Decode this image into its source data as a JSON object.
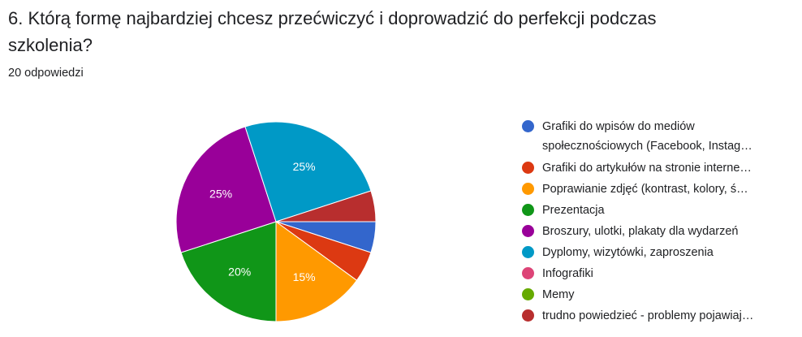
{
  "question": {
    "title_line1": "6. Którą formę najbardziej chcesz przećwiczyć i doprowadzić do perfekcji podczas",
    "title_line2": "szkolenia?",
    "response_count": "20 odpowiedzi"
  },
  "chart_data": {
    "type": "pie",
    "title": "",
    "slices": [
      {
        "label": "Grafiki do wpisów do mediów społecznościowych (Facebook, Instag…",
        "label_line1": "Grafiki do wpisów do mediów",
        "label_line2": "społecznościowych (Facebook, Instag…",
        "value": 1,
        "percent_label": "",
        "color": "#3366cc"
      },
      {
        "label": "Grafiki do artykułów na stronie interne…",
        "value": 1,
        "percent_label": "",
        "color": "#dc3912"
      },
      {
        "label": "Poprawianie zdjęć (kontrast, kolory, ś…",
        "value": 3,
        "percent_label": "15%",
        "color": "#ff9900"
      },
      {
        "label": "Prezentacja",
        "value": 4,
        "percent_label": "20%",
        "color": "#109618"
      },
      {
        "label": "Broszury, ulotki, plakaty dla wydarzeń",
        "value": 5,
        "percent_label": "25%",
        "color": "#990099"
      },
      {
        "label": "Dyplomy, wizytówki, zaproszenia",
        "value": 5,
        "percent_label": "25%",
        "color": "#0099c6"
      },
      {
        "label": "Infografiki",
        "value": 0,
        "percent_label": "",
        "color": "#dd4477"
      },
      {
        "label": "Memy",
        "value": 0,
        "percent_label": "",
        "color": "#66aa00"
      },
      {
        "label": "trudno powiedzieć - problemy pojawiaj…",
        "value": 1,
        "percent_label": "",
        "color": "#b82e2e"
      }
    ]
  }
}
